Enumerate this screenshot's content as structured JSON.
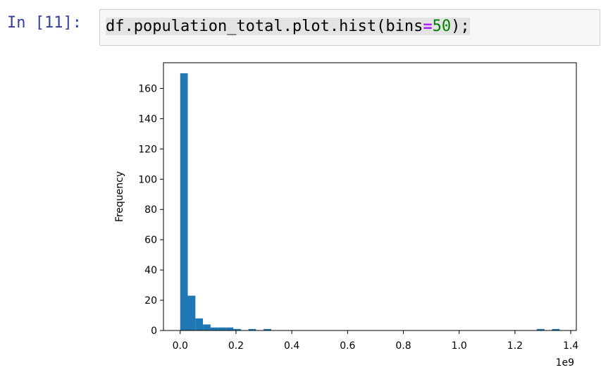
{
  "cell": {
    "prompt": "In [11]:",
    "code": {
      "object": "df.population_total.plot.hist(bins",
      "operator": "=",
      "number": "50",
      "suffix": ");"
    }
  },
  "chart_data": {
    "type": "bar",
    "title": "",
    "xlabel": "",
    "ylabel": "Frequency",
    "x_offset_label": "1e9",
    "xlim": [
      -0.06,
      1.42
    ],
    "ylim": [
      0,
      177
    ],
    "x_ticks": [
      0.0,
      0.2,
      0.4,
      0.6,
      0.8,
      1.0,
      1.2,
      1.4
    ],
    "x_tick_labels": [
      "0.0",
      "0.2",
      "0.4",
      "0.6",
      "0.8",
      "1.0",
      "1.2",
      "1.4"
    ],
    "y_ticks": [
      0,
      20,
      40,
      60,
      80,
      100,
      120,
      140,
      160
    ],
    "y_tick_labels": [
      "0",
      "20",
      "40",
      "60",
      "80",
      "100",
      "120",
      "140",
      "160"
    ],
    "grid": false,
    "bar_color": "#1f77b4",
    "bin_edges": [
      0.0,
      0.0272,
      0.0544,
      0.0816,
      0.1088,
      0.136,
      0.1632,
      0.1904,
      0.2176,
      0.2448,
      0.272,
      0.2992,
      0.3264,
      0.3536,
      0.3808,
      0.408,
      0.4352,
      0.4624,
      0.4896,
      0.5168,
      0.544,
      0.5712,
      0.5984,
      0.6256,
      0.6528,
      0.68,
      0.7072,
      0.7344,
      0.7616,
      0.7888,
      0.816,
      0.8432,
      0.8704,
      0.8976,
      0.9248,
      0.952,
      0.9792,
      1.0064,
      1.0336,
      1.0608,
      1.088,
      1.1152,
      1.1424,
      1.1696,
      1.1968,
      1.224,
      1.2512,
      1.2784,
      1.3056,
      1.3328,
      1.36
    ],
    "values": [
      170,
      23,
      8,
      4,
      2,
      2,
      2,
      1,
      0,
      1,
      0,
      1,
      0,
      0,
      0,
      0,
      0,
      0,
      0,
      0,
      0,
      0,
      0,
      0,
      0,
      0,
      0,
      0,
      0,
      0,
      0,
      0,
      0,
      0,
      0,
      0,
      0,
      0,
      0,
      0,
      0,
      0,
      0,
      0,
      0,
      0,
      0,
      1,
      0,
      1
    ]
  }
}
